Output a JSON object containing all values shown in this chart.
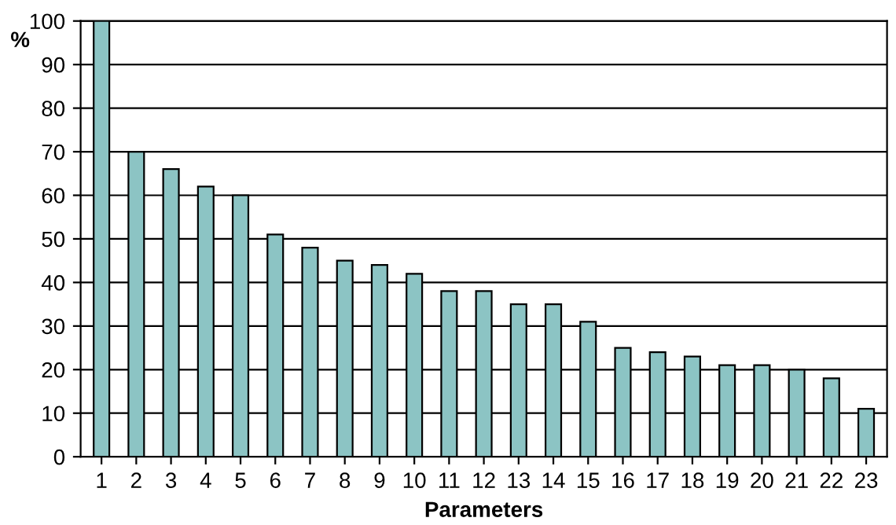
{
  "chart_data": {
    "type": "bar",
    "xlabel": "Parameters",
    "ylabel": "%",
    "categories": [
      "1",
      "2",
      "3",
      "4",
      "5",
      "6",
      "7",
      "8",
      "9",
      "10",
      "11",
      "12",
      "13",
      "14",
      "15",
      "16",
      "17",
      "18",
      "19",
      "20",
      "21",
      "22",
      "23"
    ],
    "values": [
      100,
      70,
      66,
      62,
      60,
      51,
      48,
      45,
      44,
      42,
      38,
      38,
      35,
      35,
      31,
      25,
      24,
      23,
      21,
      21,
      20,
      18,
      11
    ],
    "color": "#8cc4c4",
    "ylim": [
      0,
      100
    ],
    "yticks": [
      0,
      10,
      20,
      30,
      40,
      50,
      60,
      70,
      80,
      90,
      100
    ],
    "grid": "y"
  }
}
